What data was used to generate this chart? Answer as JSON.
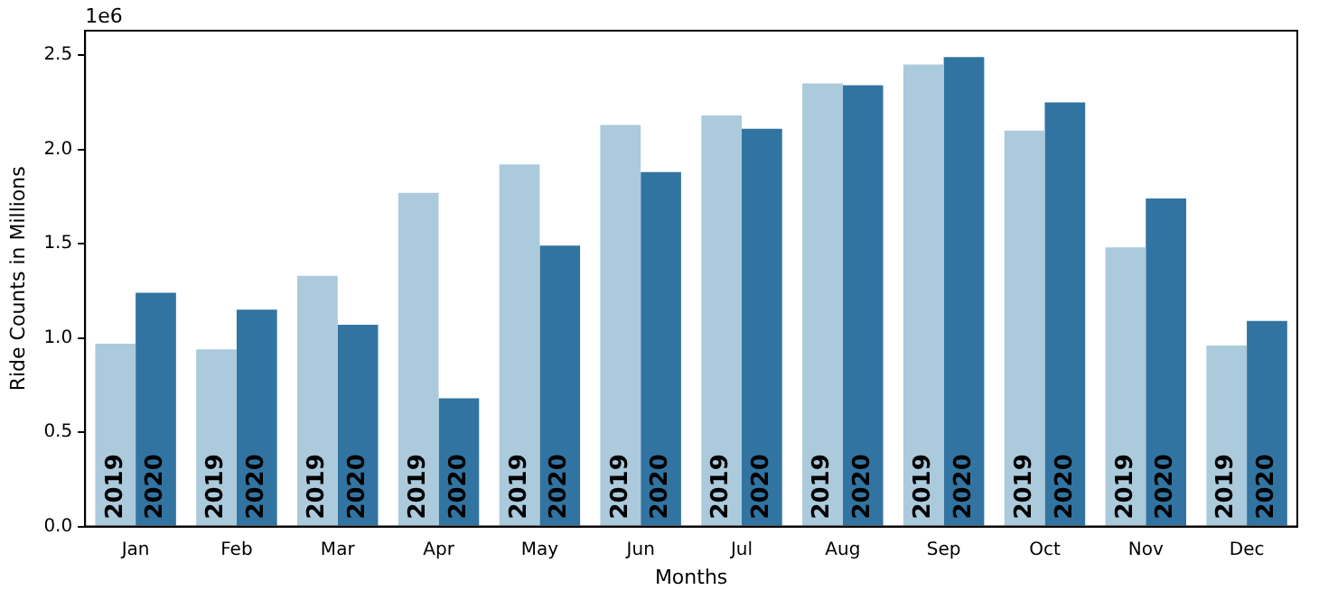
{
  "chart_data": {
    "type": "bar",
    "xlabel": "Months",
    "ylabel": "Ride Counts in Millions",
    "annotations": [
      "1e6"
    ],
    "categories": [
      "Jan",
      "Feb",
      "Mar",
      "Apr",
      "May",
      "Jun",
      "Jul",
      "Aug",
      "Sep",
      "Oct",
      "Nov",
      "Dec"
    ],
    "series": [
      {
        "name": "2019",
        "color": "#abcadc",
        "values": [
          0.97,
          0.94,
          1.33,
          1.77,
          1.92,
          2.13,
          2.18,
          2.35,
          2.45,
          2.1,
          1.48,
          0.96
        ]
      },
      {
        "name": "2020",
        "color": "#3274a1",
        "values": [
          1.24,
          1.15,
          1.07,
          0.68,
          1.49,
          1.88,
          2.11,
          2.34,
          2.49,
          2.25,
          1.74,
          1.09
        ]
      }
    ],
    "ylim": [
      0,
      2.63
    ],
    "yticks": [
      {
        "value": 0,
        "label": "0.0"
      },
      {
        "value": 0.5,
        "label": "0.5"
      },
      {
        "value": 1,
        "label": "1.0"
      },
      {
        "value": 1.5,
        "label": "1.5"
      },
      {
        "value": 2,
        "label": "2.0"
      },
      {
        "value": 2.5,
        "label": "2.5"
      }
    ],
    "grid": false,
    "legend": false
  }
}
